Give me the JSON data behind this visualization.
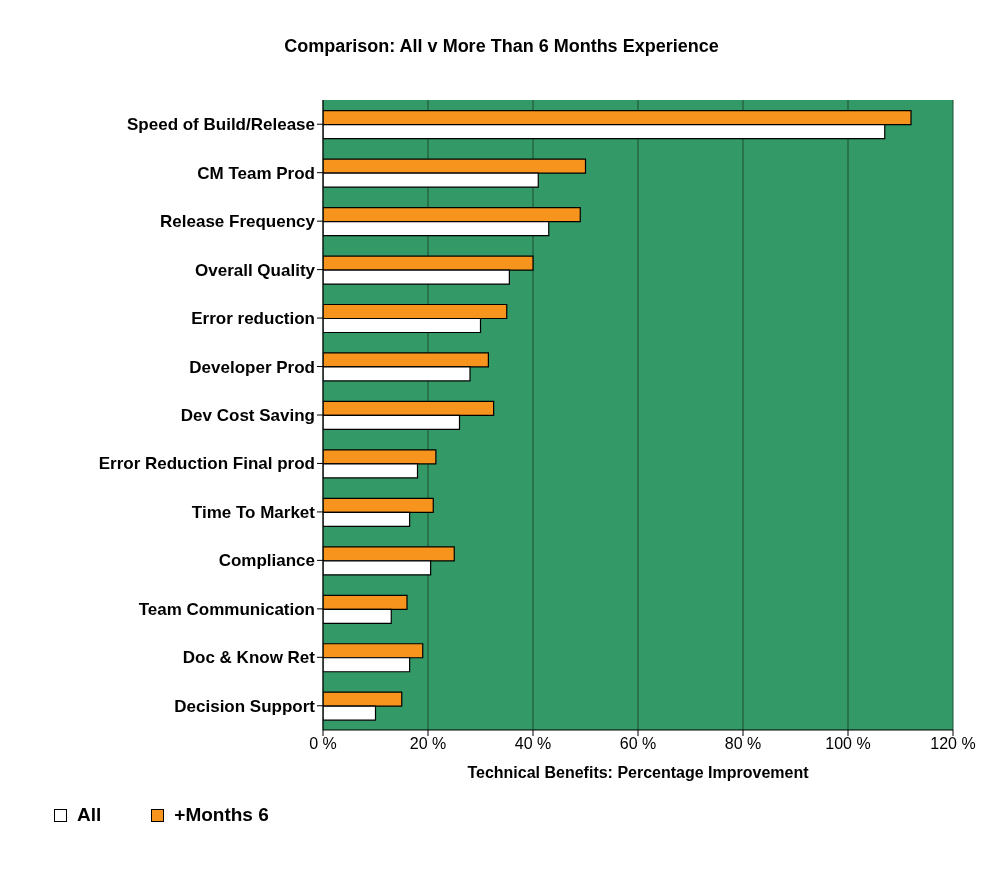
{
  "chart_data": {
    "type": "bar",
    "orientation": "horizontal",
    "title": "Comparison: All v More Than 6 Months Experience",
    "xlabel": "Technical Benefits: Percentage Improvement",
    "categories": [
      "Speed of Build/Release",
      "CM Team Prod",
      "Release Frequency",
      "Overall Quality",
      "Error reduction",
      "Developer Prod",
      "Dev Cost Saving",
      "Error Reduction Final prod",
      "Time To Market",
      "Compliance",
      "Team Communication",
      "Doc & Know Ret",
      "Decision Support"
    ],
    "series": [
      {
        "name": "+Months 6",
        "color": "#f7941d",
        "values": [
          112,
          50,
          49,
          40,
          35,
          31.5,
          32.5,
          21.5,
          21,
          25,
          16,
          19,
          15
        ]
      },
      {
        "name": "All",
        "color": "#ffffff",
        "values": [
          107,
          41,
          43,
          35.5,
          30,
          28,
          26,
          18,
          16.5,
          20.5,
          13,
          16.5,
          10
        ]
      }
    ],
    "xlim": [
      0,
      120
    ],
    "xticks": [
      {
        "value": 0,
        "label": "0 %"
      },
      {
        "value": 20,
        "label": "20 %"
      },
      {
        "value": 40,
        "label": "40 %"
      },
      {
        "value": 60,
        "label": "60 %"
      },
      {
        "value": 80,
        "label": "80 %"
      },
      {
        "value": 100,
        "label": "100 %"
      },
      {
        "value": 120,
        "label": "120 %"
      }
    ],
    "grid": "x",
    "legend": "bottom left"
  }
}
